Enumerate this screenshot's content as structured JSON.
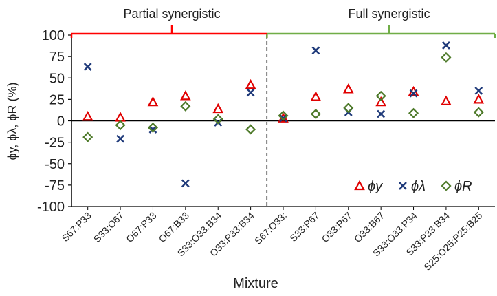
{
  "chart_data": {
    "type": "scatter",
    "xlabel": "Mixture",
    "ylabel": "ϕy, ϕλ, ϕR (%)",
    "ylim": [
      -100,
      100
    ],
    "yticks": [
      100,
      75,
      50,
      25,
      0,
      -25,
      -50,
      -75,
      -100
    ],
    "categories": [
      "S67:P33",
      "S33:O67",
      "O67:P33",
      "O67:B33",
      "S33:O33:B34",
      "O33:P33:B34",
      "S67:O33:",
      "S33:P67",
      "O33:P67",
      "O33:B67",
      "S33:O33:P34",
      "S33:P33:B34",
      "S25:O25:P25:B25"
    ],
    "regions": [
      {
        "label": "Partial synergistic",
        "from_category": 0,
        "to_category": 5,
        "color": "#ff0000"
      },
      {
        "label": "Full synergistic",
        "from_category": 6,
        "to_category": 12,
        "color": "#70ad47"
      }
    ],
    "divider_after_category": 5,
    "grid": false,
    "legend_position": "bottom-right",
    "series": [
      {
        "name": "ϕy",
        "marker": "triangle",
        "color": "#e00000",
        "values": [
          5,
          4,
          22,
          29,
          14,
          42,
          3,
          28,
          37,
          22,
          34,
          23,
          25
        ]
      },
      {
        "name": "ϕλ",
        "marker": "x",
        "color": "#1f3a7a",
        "values": [
          63,
          -21,
          -10,
          -73,
          -2,
          33,
          3,
          82,
          10,
          8,
          32,
          88,
          35
        ]
      },
      {
        "name": "ϕR",
        "marker": "diamond",
        "color": "#4e7a2a",
        "values": [
          -19,
          -5,
          -8,
          17,
          2,
          -10,
          6,
          8,
          15,
          29,
          9,
          74,
          10
        ]
      }
    ]
  }
}
